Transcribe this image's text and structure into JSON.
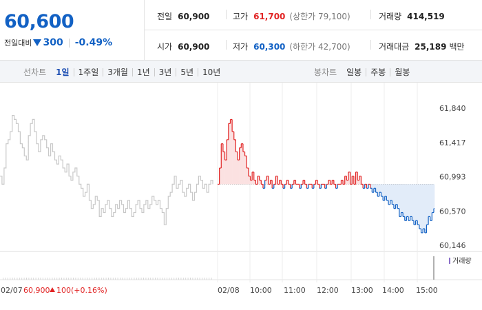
{
  "quote": {
    "price": "60,600",
    "change_label": "전일대비",
    "change_value": "300",
    "change_pct": "-0.49%",
    "prev_close_label": "전일",
    "prev_close": "60,900",
    "high_label": "고가",
    "high": "61,700",
    "upper_limit": "(상한가 79,100)",
    "volume_label": "거래량",
    "volume": "414,519",
    "open_label": "시가",
    "open": "60,900",
    "low_label": "저가",
    "low": "60,300",
    "lower_limit": "(하한가 42,700)",
    "trade_value_label": "거래대금",
    "trade_value": "25,189",
    "trade_value_unit": "백만"
  },
  "toolbar": {
    "line_title": "선차트",
    "line_items": [
      "1일",
      "1주일",
      "3개월",
      "1년",
      "3년",
      "5년",
      "10년"
    ],
    "active_line": 0,
    "candle_title": "봉차트",
    "candle_items": [
      "일봉",
      "주봉",
      "월봉"
    ]
  },
  "colors": {
    "up": "#e12323",
    "down": "#1261c4",
    "prev_day": "#c8c8c8",
    "up_fill": "#fbe1e1",
    "down_fill": "#e2ecf9"
  },
  "chart_data": {
    "type": "line",
    "ylim": [
      60146,
      61840
    ],
    "y_ticks": [
      "61,840",
      "61,417",
      "60,993",
      "60,570",
      "60,146"
    ],
    "baseline": 60900,
    "x_ticks": [
      "02/07",
      "02/08",
      "10:00",
      "11:00",
      "12:00",
      "13:00",
      "14:00",
      "15:00"
    ],
    "footer": {
      "date": "02/07",
      "close": "60,900",
      "change": "100",
      "change_pct": "(+0.16%)"
    },
    "volume_legend": "거래량",
    "series": [
      {
        "day": "02/07",
        "values": [
          61000,
          60900,
          61100,
          61400,
          61450,
          61550,
          61750,
          61700,
          61650,
          61550,
          61400,
          61350,
          61250,
          61200,
          61500,
          61650,
          61700,
          61550,
          61400,
          61300,
          61450,
          61500,
          61450,
          61350,
          61250,
          61400,
          61300,
          61200,
          61150,
          61250,
          61200,
          61100,
          61050,
          61150,
          61000,
          60950,
          61050,
          61100,
          61000,
          60900,
          60850,
          60750,
          60800,
          60900,
          60700,
          60600,
          60650,
          60750,
          60700,
          60500,
          60600,
          60550,
          60650,
          60700,
          60600,
          60500,
          60550,
          60650,
          60600,
          60700,
          60650,
          60550,
          60600,
          60700,
          60600,
          60500,
          60550,
          60650,
          60700,
          60600,
          60550,
          60650,
          60700,
          60600,
          60650,
          60750,
          60700,
          60650,
          60700,
          60600,
          60550,
          60400,
          60600,
          60750,
          60800,
          60900,
          61000,
          60850,
          60900,
          60950,
          60800,
          60750,
          60850,
          60900,
          60800,
          60700,
          60800,
          60900,
          61000,
          60950,
          60850,
          60900,
          60800,
          60900,
          60950,
          60900
        ]
      },
      {
        "day": "02/08",
        "values": [
          60900,
          61100,
          61400,
          61300,
          61200,
          61450,
          61650,
          61700,
          61550,
          61450,
          61300,
          61200,
          61350,
          61400,
          61300,
          61250,
          61100,
          61000,
          60950,
          61050,
          60950,
          60900,
          61000,
          60950,
          60900,
          60850,
          60950,
          61000,
          60900,
          60950,
          60850,
          60900,
          61000,
          60900,
          60950,
          60900,
          60850,
          60900,
          60950,
          60900,
          60850,
          60900,
          60950,
          60900,
          60900,
          60850,
          60900,
          60950,
          60900,
          60850,
          60900,
          60900,
          60850,
          60900,
          60950,
          60900,
          60850,
          60900,
          60900,
          60850,
          60900,
          60950,
          60900,
          60950,
          60900,
          60850,
          60900,
          60900,
          60950,
          60900,
          61000,
          60950,
          61050,
          60900,
          61000,
          60900,
          61050,
          60950,
          61000,
          60900,
          60850,
          60900,
          60850,
          60900,
          60850,
          60800,
          60850,
          60800,
          60750,
          60800,
          60750,
          60700,
          60750,
          60700,
          60650,
          60700,
          60650,
          60600,
          60650,
          60600,
          60500,
          60550,
          60500,
          60450,
          60500,
          60450,
          60500,
          60450,
          60400,
          60450,
          60400,
          60350,
          60300,
          60350,
          60300,
          60400,
          60500,
          60450,
          60550,
          60600
        ]
      }
    ]
  }
}
